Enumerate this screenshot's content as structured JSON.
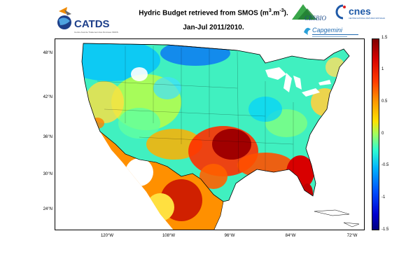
{
  "header": {
    "title_main": "Hydric Budget retrieved from SMOS (m",
    "title_sup1": "3",
    "title_mid": ".m",
    "title_sup2": "-3",
    "title_end": ").",
    "subtitle": "Jan-Jul 2011/2010."
  },
  "logos": {
    "catds": "CATDS",
    "catds_sub": "Centre Aval de Traitement des Données SMOS",
    "cesbio": "CESBIO",
    "cnes": "cnes",
    "cnes_sub": "CENTRE NATIONAL D'ETUDES SPATIALES",
    "capgemini": "Capgemini"
  },
  "axes": {
    "lat_ticks": [
      {
        "label": "48°N",
        "lat": 48
      },
      {
        "label": "42°N",
        "lat": 42
      },
      {
        "label": "36°N",
        "lat": 36
      },
      {
        "label": "30°N",
        "lat": 30
      },
      {
        "label": "24°N",
        "lat": 24
      }
    ],
    "lon_ticks": [
      {
        "label": "120°W",
        "lon": -120
      },
      {
        "label": "108°W",
        "lon": -108
      },
      {
        "label": "96°W",
        "lon": -96
      },
      {
        "label": "84°W",
        "lon": -84
      },
      {
        "label": "72°W",
        "lon": -72
      }
    ]
  },
  "colorbar": {
    "ticks": [
      {
        "label": "1.5",
        "value": 1.5
      },
      {
        "label": "1",
        "value": 1
      },
      {
        "label": "0.5",
        "value": 0.5
      },
      {
        "label": "0",
        "value": 0
      },
      {
        "label": "-0.5",
        "value": -0.5
      },
      {
        "label": "-1",
        "value": -1
      },
      {
        "label": "-1.5",
        "value": -1.5
      }
    ],
    "range": [
      -1.5,
      1.5
    ]
  },
  "colors": {
    "very_wet": "#0000cf",
    "wet": "#00b0ff",
    "neutral": "#30ffd0",
    "dry": "#ff9a00",
    "very_dry": "#d40000",
    "no_data": "#ffffff"
  }
}
